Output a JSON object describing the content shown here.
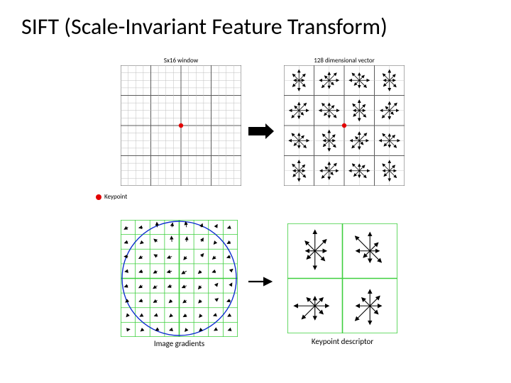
{
  "title": "SIFT (Scale-Invariant Feature Transform)",
  "row1": {
    "left_caption": "Sx16 window",
    "right_caption": "128 dimensional vector",
    "keypoint_label": "Keypoint",
    "grid": {
      "size": 16,
      "major_every": 4,
      "line_color": "#bfbfbf",
      "major_color": "#5c5c5c",
      "keypoint_color": "#e30000",
      "keypoint_cell": [
        8,
        8
      ]
    },
    "descriptor": {
      "cells": 4,
      "border_color": "#5c5c5c",
      "line_color": "#bfbfbf",
      "arrow_color": "#000000",
      "keypoint_color": "#e30000"
    },
    "arrow_color": "#000000"
  },
  "row2": {
    "left_caption": "Image gradients",
    "right_caption": "Keypoint descriptor",
    "gradients": {
      "cells": 8,
      "major_every": 4,
      "grid_color": "#3fcf3f",
      "circle_color": "#1030d0",
      "arrow_color": "#000000",
      "arrows": [
        [
          0,
          0,
          210,
          0.7
        ],
        [
          1,
          0,
          190,
          0.6
        ],
        [
          2,
          0,
          95,
          0.8
        ],
        [
          3,
          0,
          80,
          0.7
        ],
        [
          4,
          0,
          100,
          0.9
        ],
        [
          5,
          0,
          70,
          0.6
        ],
        [
          6,
          0,
          60,
          0.5
        ],
        [
          7,
          0,
          200,
          0.5
        ],
        [
          0,
          1,
          200,
          0.6
        ],
        [
          1,
          1,
          220,
          0.5
        ],
        [
          2,
          1,
          140,
          0.7
        ],
        [
          3,
          1,
          95,
          0.9
        ],
        [
          4,
          1,
          85,
          0.8
        ],
        [
          5,
          1,
          60,
          0.7
        ],
        [
          6,
          1,
          230,
          0.5
        ],
        [
          7,
          1,
          210,
          0.6
        ],
        [
          0,
          2,
          180,
          0.6
        ],
        [
          1,
          2,
          210,
          0.7
        ],
        [
          2,
          2,
          150,
          0.6
        ],
        [
          3,
          2,
          200,
          0.8
        ],
        [
          4,
          2,
          230,
          0.7
        ],
        [
          5,
          2,
          50,
          0.6
        ],
        [
          6,
          2,
          220,
          0.7
        ],
        [
          7,
          2,
          200,
          0.6
        ],
        [
          0,
          3,
          190,
          0.5
        ],
        [
          1,
          3,
          200,
          0.6
        ],
        [
          2,
          3,
          210,
          0.7
        ],
        [
          3,
          3,
          195,
          0.8
        ],
        [
          4,
          3,
          210,
          0.9
        ],
        [
          5,
          3,
          220,
          0.6
        ],
        [
          6,
          3,
          200,
          0.6
        ],
        [
          7,
          3,
          40,
          0.5
        ],
        [
          0,
          4,
          200,
          0.6
        ],
        [
          1,
          4,
          210,
          0.7
        ],
        [
          2,
          4,
          215,
          0.8
        ],
        [
          3,
          4,
          200,
          0.7
        ],
        [
          4,
          4,
          205,
          0.8
        ],
        [
          5,
          4,
          230,
          0.7
        ],
        [
          6,
          4,
          50,
          0.5
        ],
        [
          7,
          4,
          60,
          0.5
        ],
        [
          0,
          5,
          220,
          0.5
        ],
        [
          1,
          5,
          200,
          0.6
        ],
        [
          2,
          5,
          210,
          0.7
        ],
        [
          3,
          5,
          220,
          0.6
        ],
        [
          4,
          5,
          215,
          0.7
        ],
        [
          5,
          5,
          225,
          0.6
        ],
        [
          6,
          5,
          40,
          0.5
        ],
        [
          7,
          5,
          200,
          0.6
        ],
        [
          0,
          6,
          230,
          0.4
        ],
        [
          1,
          6,
          210,
          0.5
        ],
        [
          2,
          6,
          200,
          0.5
        ],
        [
          3,
          6,
          220,
          0.5
        ],
        [
          4,
          6,
          210,
          0.6
        ],
        [
          5,
          6,
          230,
          0.5
        ],
        [
          6,
          6,
          200,
          0.4
        ],
        [
          7,
          6,
          210,
          0.5
        ],
        [
          0,
          7,
          10,
          0.3
        ],
        [
          1,
          7,
          220,
          0.4
        ],
        [
          2,
          7,
          210,
          0.3
        ],
        [
          3,
          7,
          200,
          0.4
        ],
        [
          4,
          7,
          230,
          0.4
        ],
        [
          5,
          7,
          220,
          0.4
        ],
        [
          6,
          7,
          210,
          0.3
        ],
        [
          7,
          7,
          200,
          0.4
        ]
      ]
    },
    "descriptor": {
      "cells": 2,
      "grid_color": "#3fcf3f",
      "arrow_color": "#000000",
      "stars": [
        {
          "lengths": [
            0.5,
            0.7,
            0.9,
            0.6,
            0.4,
            0.5,
            0.8,
            0.6
          ]
        },
        {
          "lengths": [
            0.4,
            0.5,
            0.8,
            0.9,
            0.6,
            0.4,
            0.5,
            0.7
          ]
        },
        {
          "lengths": [
            0.6,
            0.5,
            0.4,
            0.5,
            0.9,
            0.8,
            0.6,
            0.5
          ]
        },
        {
          "lengths": [
            0.5,
            0.6,
            0.7,
            0.5,
            0.6,
            0.9,
            0.8,
            0.5
          ]
        }
      ]
    },
    "arrow_color": "#000000"
  },
  "colors": {
    "bg": "#ffffff",
    "text": "#000000"
  }
}
